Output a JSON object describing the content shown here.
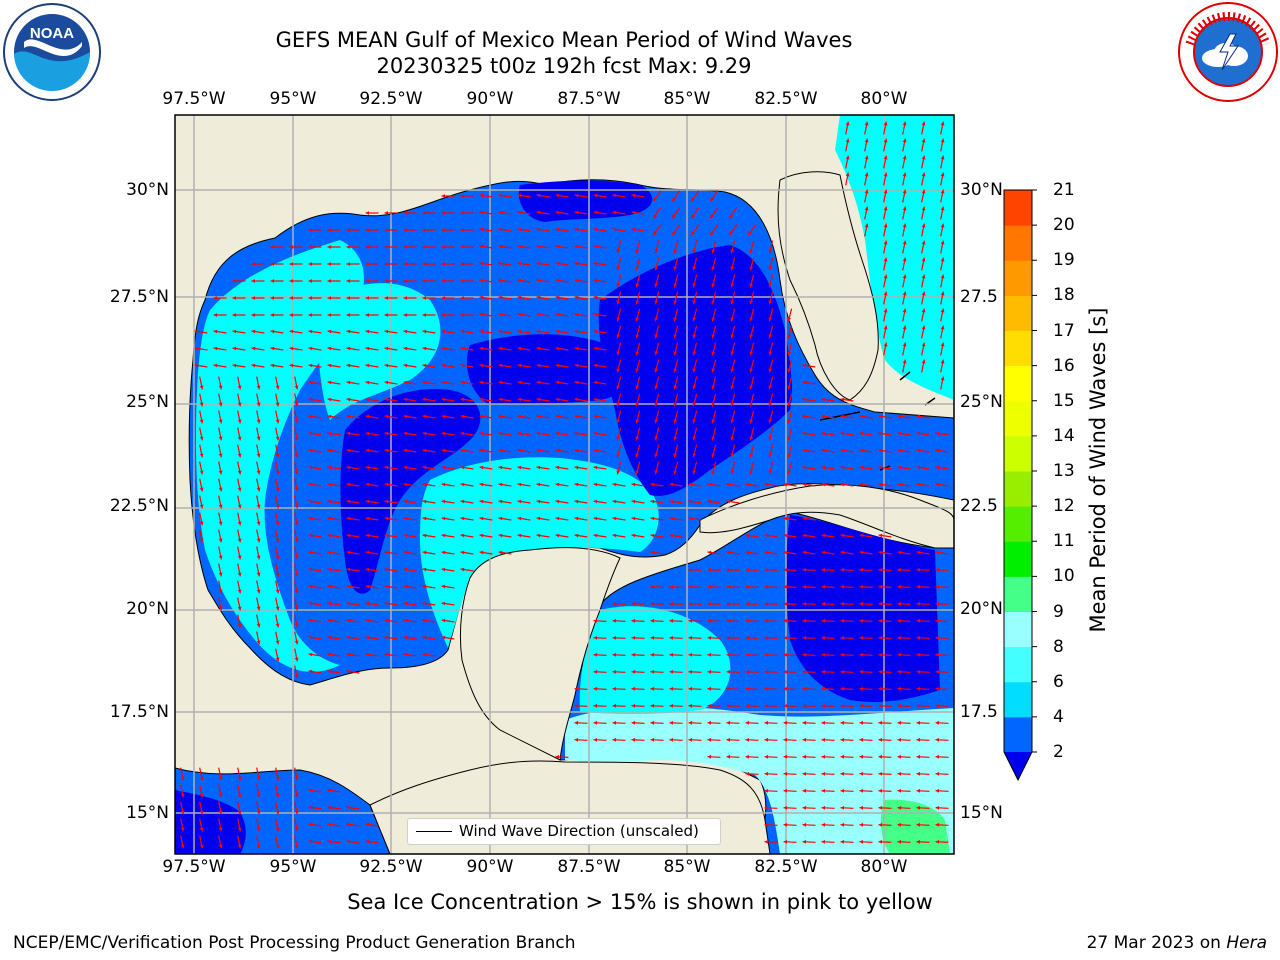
{
  "title": {
    "line1": "GEFS MEAN Gulf of Mexico Mean Period of Wind Waves",
    "line2": "20230325 t00z 192h fcst   Max: 9.29"
  },
  "map": {
    "lon_ticks": [
      "97.5°W",
      "95°W",
      "92.5°W",
      "90°W",
      "87.5°W",
      "85°W",
      "82.5°W",
      "80°W"
    ],
    "lat_ticks_left": [
      "30°N",
      "27.5°N",
      "25°N",
      "22.5°N",
      "20°N",
      "17.5°N",
      "15°N"
    ],
    "lat_ticks_right": [
      "30°N",
      "27.5",
      "25°N",
      "22.5",
      "20°N",
      "17.5",
      "15°N"
    ],
    "land_color": "#efedda",
    "arrow_color": "#ff0000",
    "grid": true
  },
  "legend": {
    "label": "Wind Wave Direction (unscaled)"
  },
  "colorbar": {
    "label": "Mean Period of Wind Waves [s]",
    "ticks": [
      "2",
      "4",
      "6",
      "8",
      "9",
      "10",
      "11",
      "12",
      "13",
      "14",
      "15",
      "16",
      "17",
      "18",
      "19",
      "20",
      "21"
    ],
    "colors": [
      "#0066ff",
      "#00ddff",
      "#44ffff",
      "#99ffff",
      "#44ff88",
      "#00ee00",
      "#55ee00",
      "#99ee00",
      "#ccff00",
      "#eeff00",
      "#ffff00",
      "#ffdd00",
      "#ffbb00",
      "#ff9900",
      "#ff7700",
      "#ff4400",
      "#ff0000"
    ],
    "extend_color": "#0000ee"
  },
  "note": "Sea Ice Concentration > 15% is shown in pink to yellow",
  "footer": {
    "left": "NCEP/EMC/Verification Post Processing Product Generation Branch",
    "date": "27 Mar 2023 on ",
    "host": "Hera"
  }
}
